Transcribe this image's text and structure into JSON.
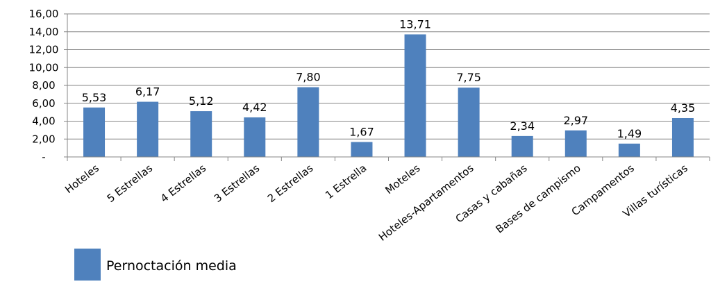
{
  "chart_data": {
    "type": "bar",
    "categories": [
      "Hoteles",
      "5 Estrellas",
      "4 Estrellas",
      "3 Estrellas",
      "2 Estrellas",
      "1 Estrella",
      "Moteles",
      "Hoteles-Apartamentos",
      "Casas y cabañas",
      "Bases de campismo",
      "Campamentos",
      "Villas turísticas"
    ],
    "series": [
      {
        "name": "Pernoctación media",
        "values": [
          5.53,
          6.17,
          5.12,
          4.42,
          7.8,
          1.67,
          13.71,
          7.75,
          2.34,
          2.97,
          1.49,
          4.35
        ],
        "labels": [
          "5,53",
          "6,17",
          "5,12",
          "4,42",
          "7,80",
          "1,67",
          "13,71",
          "7,75",
          "2,34",
          "2,97",
          "1,49",
          "4,35"
        ]
      }
    ],
    "ylim": [
      0,
      16
    ],
    "yticks": [
      "-",
      "2,00",
      "4,00",
      "6,00",
      "8,00",
      "10,00",
      "12,00",
      "14,00",
      "16,00"
    ],
    "grid": "horizontal",
    "legend_position": "bottom-left",
    "colors": {
      "bar": "#4f81bd",
      "grid": "#868686",
      "axis": "#868686"
    }
  }
}
